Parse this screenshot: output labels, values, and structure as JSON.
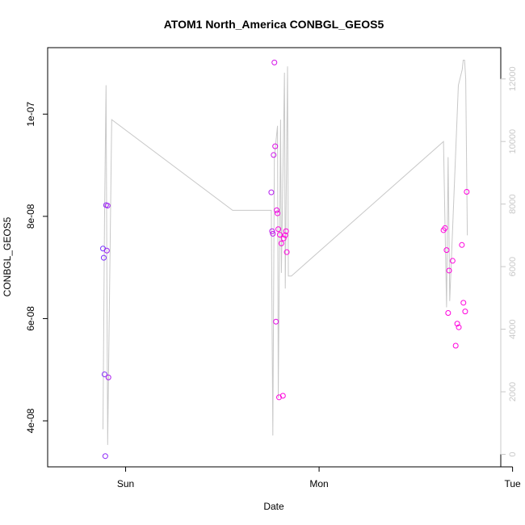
{
  "chart_data": {
    "type": "scatter",
    "title": "ATOM1 North_America CONBGL_GEOS5",
    "xlabel": "Date",
    "ylabel": "CONBGL_GEOS5",
    "x_unit": "days since Saturday 00:00",
    "xlim": [
      1.597,
      3.939
    ],
    "ylim": [
      3.1e-08,
      1.13e-07
    ],
    "y2lim": [
      -400,
      13000
    ],
    "x_ticks": [
      {
        "label": "Sun",
        "value": 2
      },
      {
        "label": "Mon",
        "value": 3
      },
      {
        "label": "Tue",
        "value": 4
      }
    ],
    "y_ticks": [
      {
        "label": "4e-08",
        "value": 4e-08
      },
      {
        "label": "6e-08",
        "value": 6e-08
      },
      {
        "label": "8e-08",
        "value": 8e-08
      },
      {
        "label": "1e-07",
        "value": 1e-07
      }
    ],
    "y2_ticks": [
      {
        "label": "0",
        "value": 0
      },
      {
        "label": "2000",
        "value": 2000
      },
      {
        "label": "4000",
        "value": 4000
      },
      {
        "label": "6000",
        "value": 6000
      },
      {
        "label": "8000",
        "value": 8000
      },
      {
        "label": "10000",
        "value": 10000
      },
      {
        "label": "12000",
        "value": 12000
      }
    ],
    "grid": false,
    "series": [
      {
        "name": "CONBGL_GEOS5 points",
        "color_start": "#7733ff",
        "color_end": "#ff00dd",
        "points": [
          {
            "x": 1.883,
            "y": 7.37e-08
          },
          {
            "x": 1.887,
            "y": 7.19e-08
          },
          {
            "x": 1.891,
            "y": 4.91e-08
          },
          {
            "x": 1.895,
            "y": 3.31e-08
          },
          {
            "x": 1.899,
            "y": 8.22e-08
          },
          {
            "x": 1.903,
            "y": 7.33e-08
          },
          {
            "x": 1.907,
            "y": 8.21e-08
          },
          {
            "x": 1.911,
            "y": 4.85e-08
          },
          {
            "x": 2.753,
            "y": 8.47e-08
          },
          {
            "x": 2.757,
            "y": 7.71e-08
          },
          {
            "x": 2.761,
            "y": 7.66e-08
          },
          {
            "x": 2.765,
            "y": 9.2e-08
          },
          {
            "x": 2.769,
            "y": 1.101e-07
          },
          {
            "x": 2.773,
            "y": 9.37e-08
          },
          {
            "x": 2.777,
            "y": 5.94e-08
          },
          {
            "x": 2.781,
            "y": 8.12e-08
          },
          {
            "x": 2.785,
            "y": 8.06e-08
          },
          {
            "x": 2.789,
            "y": 7.75e-08
          },
          {
            "x": 2.793,
            "y": 4.46e-08
          },
          {
            "x": 2.797,
            "y": 7.64e-08
          },
          {
            "x": 2.805,
            "y": 7.47e-08
          },
          {
            "x": 2.813,
            "y": 4.49e-08
          },
          {
            "x": 2.817,
            "y": 7.57e-08
          },
          {
            "x": 2.825,
            "y": 7.63e-08
          },
          {
            "x": 2.829,
            "y": 7.71e-08
          },
          {
            "x": 2.833,
            "y": 7.3e-08
          },
          {
            "x": 3.643,
            "y": 7.73e-08
          },
          {
            "x": 3.651,
            "y": 7.77e-08
          },
          {
            "x": 3.659,
            "y": 7.34e-08
          },
          {
            "x": 3.667,
            "y": 6.11e-08
          },
          {
            "x": 3.672,
            "y": 6.94e-08
          },
          {
            "x": 3.69,
            "y": 7.13e-08
          },
          {
            "x": 3.706,
            "y": 5.47e-08
          },
          {
            "x": 3.714,
            "y": 5.9e-08
          },
          {
            "x": 3.722,
            "y": 5.83e-08
          },
          {
            "x": 3.738,
            "y": 7.44e-08
          },
          {
            "x": 3.746,
            "y": 6.31e-08
          },
          {
            "x": 3.755,
            "y": 6.14e-08
          },
          {
            "x": 3.763,
            "y": 8.48e-08
          }
        ]
      },
      {
        "name": "secondary axis line",
        "axis": "right",
        "color": "#c8c8c8",
        "points": [
          {
            "x": 1.883,
            "y": 800
          },
          {
            "x": 1.891,
            "y": 7500
          },
          {
            "x": 1.899,
            "y": 11800
          },
          {
            "x": 1.907,
            "y": 300
          },
          {
            "x": 1.928,
            "y": 10700
          },
          {
            "x": 2.553,
            "y": 7800
          },
          {
            "x": 2.753,
            "y": 7800
          },
          {
            "x": 2.761,
            "y": 600
          },
          {
            "x": 2.769,
            "y": 9500
          },
          {
            "x": 2.785,
            "y": 10500
          },
          {
            "x": 2.789,
            "y": 1800
          },
          {
            "x": 2.801,
            "y": 10700
          },
          {
            "x": 2.805,
            "y": 5800
          },
          {
            "x": 2.821,
            "y": 12200
          },
          {
            "x": 2.825,
            "y": 5300
          },
          {
            "x": 2.837,
            "y": 12400
          },
          {
            "x": 2.841,
            "y": 5700
          },
          {
            "x": 2.857,
            "y": 5700
          },
          {
            "x": 3.643,
            "y": 10000
          },
          {
            "x": 3.651,
            "y": 7300
          },
          {
            "x": 3.659,
            "y": 4700
          },
          {
            "x": 3.667,
            "y": 9500
          },
          {
            "x": 3.675,
            "y": 4900
          },
          {
            "x": 3.72,
            "y": 11800
          },
          {
            "x": 3.74,
            "y": 12300
          },
          {
            "x": 3.745,
            "y": 12600
          },
          {
            "x": 3.752,
            "y": 12600
          },
          {
            "x": 3.758,
            "y": 12000
          },
          {
            "x": 3.766,
            "y": 7000
          }
        ]
      }
    ]
  }
}
